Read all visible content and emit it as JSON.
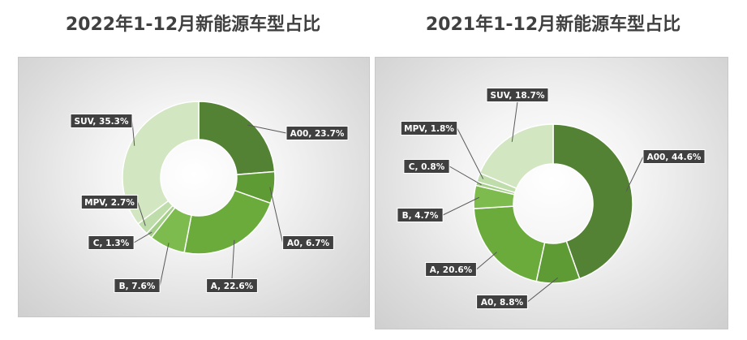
{
  "titles": {
    "left": "2022年1-12月新能源车型占比",
    "right": "2021年1-12月新能源车型占比"
  },
  "colors": {
    "A00": "#548235",
    "A0": "#5f9b35",
    "A": "#6aab3c",
    "B": "#7dbb4e",
    "C": "#a3cf87",
    "MPV": "#bfddaa",
    "SUV": "#d2e6c2",
    "label_bg": "#404040",
    "label_border": "#ffffff"
  },
  "chart_data": [
    {
      "type": "pie",
      "title": "2022年1-12月新能源车型占比",
      "categories": [
        "A00",
        "A0",
        "A",
        "B",
        "C",
        "MPV",
        "SUV"
      ],
      "values": [
        23.7,
        6.7,
        22.6,
        7.6,
        1.3,
        2.7,
        35.3
      ],
      "labels": [
        "A00, 23.7%",
        "A0, 6.7%",
        "A, 22.6%",
        "B, 7.6%",
        "C, 1.3%",
        "MPV, 2.7%",
        "SUV, 35.3%"
      ],
      "donut": true
    },
    {
      "type": "pie",
      "title": "2021年1-12月新能源车型占比",
      "categories": [
        "A00",
        "A0",
        "A",
        "B",
        "C",
        "MPV",
        "SUV"
      ],
      "values": [
        44.6,
        8.8,
        20.6,
        4.7,
        0.8,
        1.8,
        18.7
      ],
      "labels": [
        "A00, 44.6%",
        "A0, 8.8%",
        "A, 20.6%",
        "B, 4.7%",
        "C, 0.8%",
        "MPV, 1.8%",
        "SUV, 18.7%"
      ],
      "donut": true
    }
  ]
}
